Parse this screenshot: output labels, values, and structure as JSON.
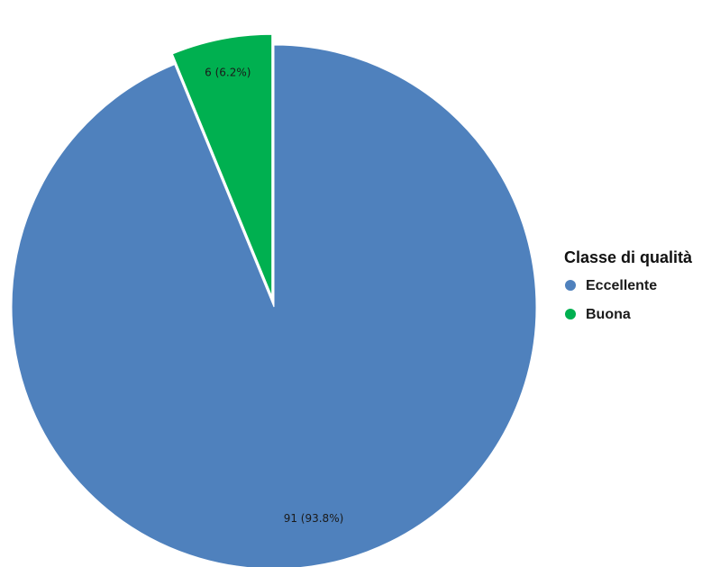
{
  "chart_data": {
    "type": "pie",
    "legend_title": "Classe di qualità",
    "legend_position": "right",
    "slices": [
      {
        "name": "Eccellente",
        "value": 91,
        "label": "91 (93.8%)",
        "color": "#4F81BD",
        "exploded": false
      },
      {
        "name": "Buona",
        "value": 6,
        "label": "6 (6.2%)",
        "color": "#00B050",
        "exploded": true
      }
    ]
  }
}
